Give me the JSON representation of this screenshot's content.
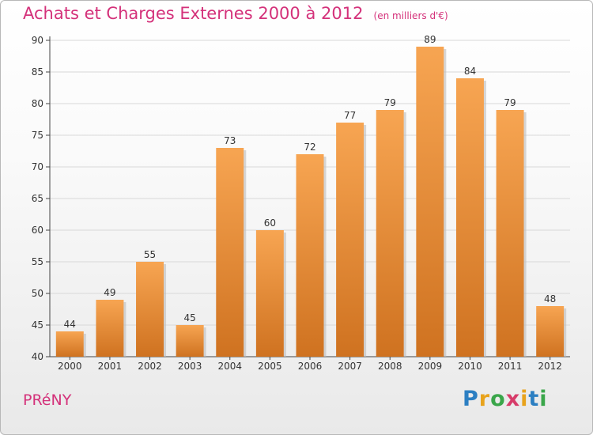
{
  "header": {
    "title": "Achats et Charges Externes 2000 à 2012",
    "unit": "(en milliers d'€)"
  },
  "footer": {
    "commune": "PRéNY",
    "logo": {
      "letters": [
        "P",
        "r",
        "o",
        "x",
        "i",
        "t",
        "i"
      ],
      "colors": [
        "#2c7fc2",
        "#e8a31c",
        "#3aa64a",
        "#d73c6a",
        "#e8a31c",
        "#2c7fc2",
        "#3aa64a"
      ]
    }
  },
  "colors": {
    "bar_light": "#f7a552",
    "bar_dark": "#cf7220",
    "title": "#d4317a",
    "grid": "#d8d8d8"
  },
  "chart_data": {
    "type": "bar",
    "title": "Achats et Charges Externes 2000 à 2012",
    "subtitle": "(en milliers d'€)",
    "categories": [
      "2000",
      "2001",
      "2002",
      "2003",
      "2004",
      "2005",
      "2006",
      "2007",
      "2008",
      "2009",
      "2010",
      "2011",
      "2012"
    ],
    "values": [
      44,
      49,
      55,
      45,
      73,
      60,
      72,
      77,
      79,
      89,
      84,
      79,
      48
    ],
    "ylim": [
      40,
      90
    ],
    "yticks": [
      40,
      45,
      50,
      55,
      60,
      65,
      70,
      75,
      80,
      85,
      90
    ],
    "grid": true,
    "xlabel": "",
    "ylabel": ""
  }
}
